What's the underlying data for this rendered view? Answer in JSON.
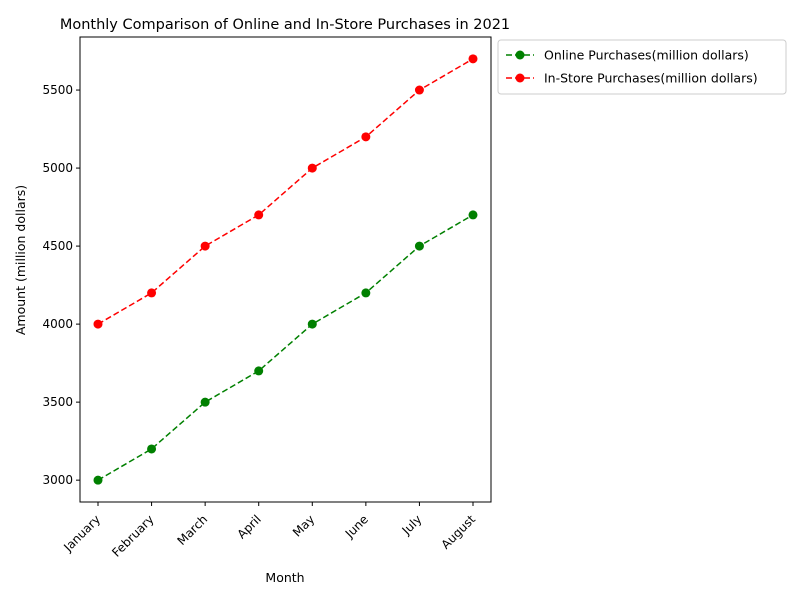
{
  "chart_data": {
    "type": "line",
    "title": "Monthly Comparison of Online and In-Store Purchases in 2021",
    "xlabel": "Month",
    "ylabel": "Amount (million dollars)",
    "categories": [
      "January",
      "February",
      "March",
      "April",
      "May",
      "June",
      "July",
      "August"
    ],
    "ylim": [
      2860,
      5840
    ],
    "yticks": [
      3000,
      3500,
      4000,
      4500,
      5000,
      5500
    ],
    "grid": false,
    "legend_position": "outside-top-right",
    "series": [
      {
        "name": "Online Purchases(million dollars)",
        "color": "#008000",
        "line_style": "dashed",
        "marker": "circle",
        "values": [
          3000,
          3200,
          3500,
          3700,
          4000,
          4200,
          4500,
          4700
        ]
      },
      {
        "name": "In-Store Purchases(million dollars)",
        "color": "#ff0000",
        "line_style": "dashed",
        "marker": "circle",
        "values": [
          4000,
          4200,
          4500,
          4700,
          5000,
          5200,
          5500,
          5700
        ]
      }
    ]
  }
}
